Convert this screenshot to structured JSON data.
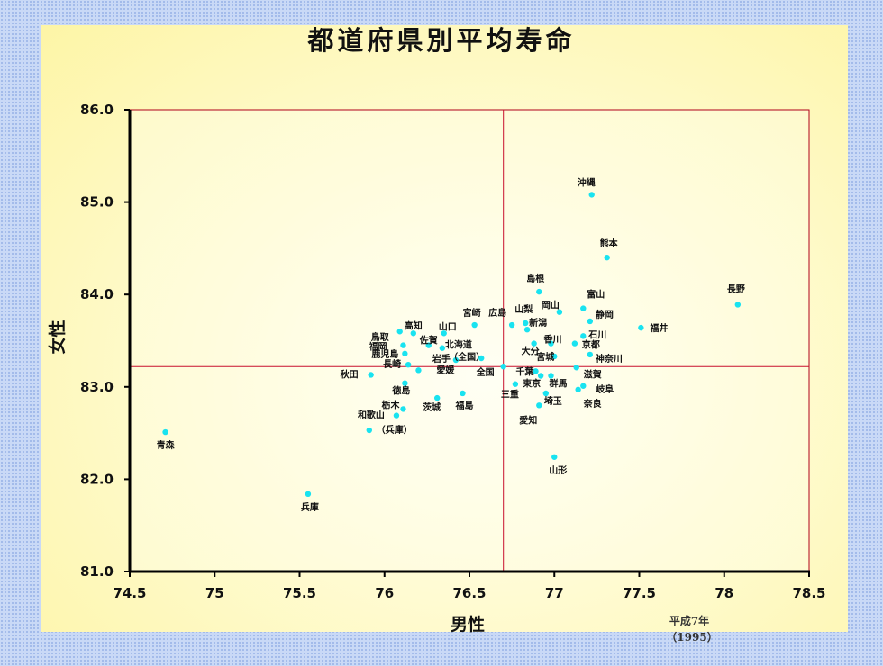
{
  "chart_data": {
    "type": "scatter",
    "title": "都道府県別平均寿命",
    "xlabel": "男性",
    "ylabel": "女性",
    "xlim": [
      74.5,
      78.5
    ],
    "ylim": [
      81.0,
      86.0
    ],
    "x_ticks": [
      "74.5",
      "75",
      "75.5",
      "76",
      "76.5",
      "77",
      "77.5",
      "78",
      "78.5"
    ],
    "y_ticks": [
      "81.0",
      "82.0",
      "83.0",
      "84.0",
      "85.0",
      "86.0"
    ],
    "reference_lines": {
      "x": 76.7,
      "y": 83.22
    },
    "note": [
      "平成7年",
      "（1995）"
    ],
    "points": [
      {
        "name": "沖縄",
        "x": 77.22,
        "y": 85.08
      },
      {
        "name": "熊本",
        "x": 77.31,
        "y": 84.4
      },
      {
        "name": "長野",
        "x": 78.08,
        "y": 83.89
      },
      {
        "name": "島根",
        "x": 76.91,
        "y": 84.03
      },
      {
        "name": "岡山",
        "x": 77.03,
        "y": 83.81
      },
      {
        "name": "富山",
        "x": 77.17,
        "y": 83.85
      },
      {
        "name": "静岡",
        "x": 77.21,
        "y": 83.71
      },
      {
        "name": "福井",
        "x": 77.51,
        "y": 83.64
      },
      {
        "name": "石川",
        "x": 77.17,
        "y": 83.55
      },
      {
        "name": "京都",
        "x": 77.12,
        "y": 83.47
      },
      {
        "name": "神奈川",
        "x": 77.21,
        "y": 83.35
      },
      {
        "name": "滋賀",
        "x": 77.13,
        "y": 83.21
      },
      {
        "name": "岐阜",
        "x": 77.17,
        "y": 83.01
      },
      {
        "name": "奈良",
        "x": 77.14,
        "y": 82.97
      },
      {
        "name": "宮崎",
        "x": 76.53,
        "y": 83.67
      },
      {
        "name": "広島",
        "x": 76.75,
        "y": 83.67
      },
      {
        "name": "山梨",
        "x": 76.83,
        "y": 83.69
      },
      {
        "name": "新潟",
        "x": 76.84,
        "y": 83.62
      },
      {
        "name": "大分",
        "x": 76.88,
        "y": 83.47
      },
      {
        "name": "香川",
        "x": 76.98,
        "y": 83.47
      },
      {
        "name": "宮城",
        "x": 77.0,
        "y": 83.33
      },
      {
        "name": "千葉",
        "x": 76.89,
        "y": 83.17
      },
      {
        "name": "東京",
        "x": 76.92,
        "y": 83.12
      },
      {
        "name": "群馬",
        "x": 76.98,
        "y": 83.12
      },
      {
        "name": "三重",
        "x": 76.77,
        "y": 83.03
      },
      {
        "name": "埼玉",
        "x": 76.95,
        "y": 82.93
      },
      {
        "name": "愛知",
        "x": 76.91,
        "y": 82.8
      },
      {
        "name": "山形",
        "x": 77.0,
        "y": 82.24
      },
      {
        "name": "鳥取",
        "x": 76.09,
        "y": 83.6
      },
      {
        "name": "高知",
        "x": 76.17,
        "y": 83.58
      },
      {
        "name": "山口",
        "x": 76.35,
        "y": 83.58
      },
      {
        "name": "佐賀",
        "x": 76.26,
        "y": 83.45
      },
      {
        "name": "北海道",
        "x": 76.34,
        "y": 83.42
      },
      {
        "name": "福岡",
        "x": 76.11,
        "y": 83.45
      },
      {
        "name": "鹿児島",
        "x": 76.12,
        "y": 83.36
      },
      {
        "name": "岩手",
        "x": 76.42,
        "y": 83.29
      },
      {
        "name": "（全国）",
        "x": 76.57,
        "y": 83.31
      },
      {
        "name": "全国",
        "x": 76.7,
        "y": 83.22
      },
      {
        "name": "長崎",
        "x": 76.14,
        "y": 83.24
      },
      {
        "name": "愛媛",
        "x": 76.2,
        "y": 83.18
      },
      {
        "name": "秋田",
        "x": 75.92,
        "y": 83.13
      },
      {
        "name": "徳島",
        "x": 76.12,
        "y": 83.04
      },
      {
        "name": "茨城",
        "x": 76.31,
        "y": 82.88
      },
      {
        "name": "福島",
        "x": 76.46,
        "y": 82.93
      },
      {
        "name": "栃木",
        "x": 76.11,
        "y": 82.76
      },
      {
        "name": "和歌山",
        "x": 76.07,
        "y": 82.69
      },
      {
        "name": "（兵庫）",
        "x": 75.91,
        "y": 82.53
      },
      {
        "name": "青森",
        "x": 74.71,
        "y": 82.51
      },
      {
        "name": "兵庫",
        "x": 75.55,
        "y": 81.84
      }
    ]
  }
}
